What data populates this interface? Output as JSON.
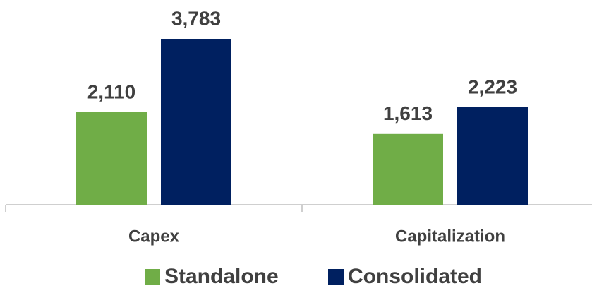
{
  "chart_data": {
    "type": "bar",
    "categories": [
      "Capex",
      "Capitalization"
    ],
    "series": [
      {
        "name": "Standalone",
        "color": "#70ad47",
        "values": [
          2110,
          1613
        ],
        "value_labels": [
          "2,110",
          "1,613"
        ]
      },
      {
        "name": "Consolidated",
        "color": "#002060",
        "values": [
          3783,
          2223
        ],
        "value_labels": [
          "3,783",
          "2,223"
        ]
      }
    ],
    "legend": "bottom"
  }
}
